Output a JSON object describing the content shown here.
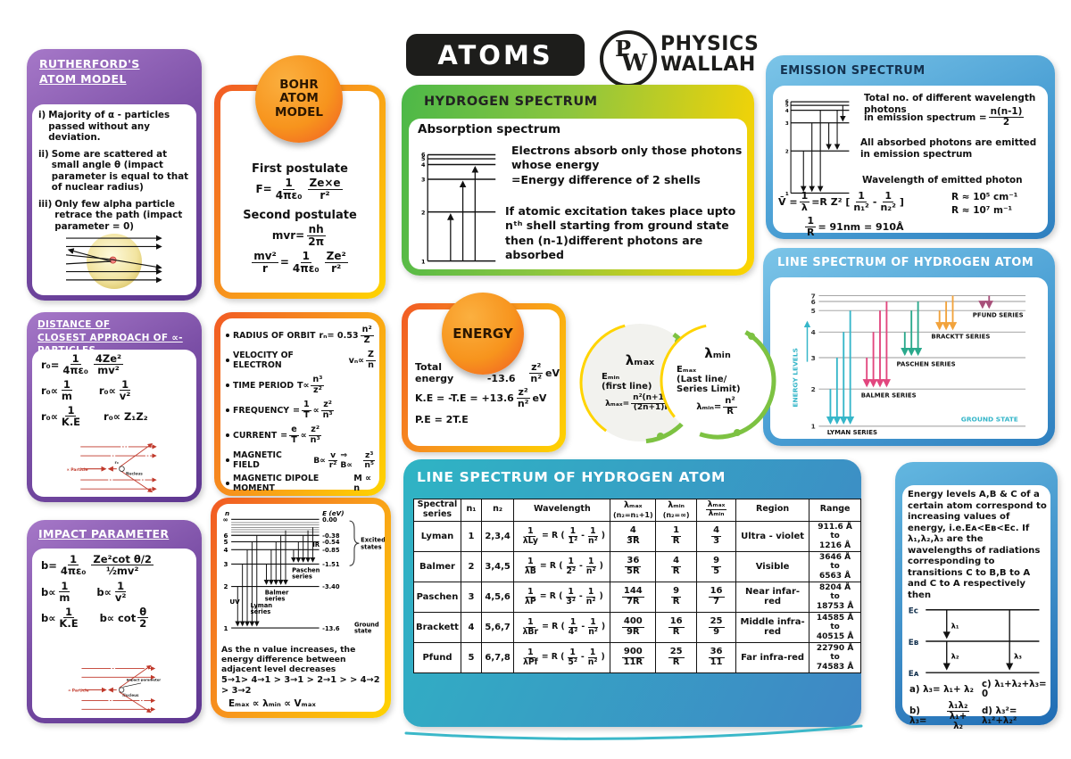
{
  "header": {
    "title": "ATOMS",
    "logo_p": "P",
    "logo_w": "W",
    "brand1": "PHYSICS",
    "brand2": "WALLAH"
  },
  "colors": {
    "purple": "#5d3690",
    "orange": "#f15a24",
    "yellow": "#ffd400",
    "green": "#4cb848",
    "blue": "#2e7fbf",
    "teal": "#2fb4c4",
    "lyman": "#35b6c9",
    "balmer": "#e2467e",
    "paschen": "#2aa98c",
    "brackett": "#f2a33c",
    "pfund": "#a8507a",
    "diagram_red": "#c0392b"
  },
  "rutherford": {
    "title1": "RUTHERFORD'S",
    "title2": "ATOM MODEL",
    "items": [
      {
        "num": "i)",
        "text": "Majority of α - particles passed without any deviation."
      },
      {
        "num": "ii)",
        "text": "Some are scattered at small angle θ (impact parameter is equal to that of nuclear radius)"
      },
      {
        "num": "iii)",
        "text": "Only few alpha particle retrace the path (impact parameter = 0)"
      }
    ]
  },
  "distance": {
    "title1": "DISTANCE OF",
    "title2": "CLOSEST APPROACH OF ∝-PARTICLES",
    "f1": "r₀= {1|4πε₀} {4Ze²|mv²}",
    "f2": "r₀∝ {1|m}",
    "f3": "r₀∝ {1|v²}",
    "f4": "r₀∝ {1|K.E}",
    "f5": "r₀∝ Z₁Z₂",
    "lbl_particle": "∝ Particle",
    "lbl_nucleus": "Nucleus",
    "lbl_r0": "r₀"
  },
  "impact": {
    "title": "IMPACT PARAMETER",
    "f1": "b= {1|4πε₀} {Ze²cot θ/2|½mv²}",
    "f2": "b∝ {1|m}",
    "f3": "b∝ {1|v²}",
    "f4": "b∝ {1|K.E}",
    "f5": "b∝ cot {θ|2}",
    "lbl_particle": "∝ Particle",
    "lbl_nucleus": "Nucleus",
    "lbl_impact": "Impact parameter"
  },
  "bohr": {
    "badge1": "BOHR",
    "badge2": "ATOM",
    "badge3": "MODEL",
    "h1": "First postulate",
    "f1": "F= {1|4πε₀} {Ze×e|r²}",
    "h2": "Second postulate",
    "f2": "mvr= {nh|2π}",
    "f3": "{mv²|r} = {1|4πε₀} {Ze²|r²}"
  },
  "orbit": {
    "items": [
      {
        "label": "RADIUS OF ORBIT",
        "formula": "rₙ= 0.53 {n²|Z}"
      },
      {
        "label": "VELOCITY OF ELECTRON",
        "formula": "vₙ∝ {Z|n}"
      },
      {
        "label": "TIME PERIOD",
        "formula": "T∝ {n³|z²}"
      },
      {
        "label": "FREQUENCY",
        "formula": "= {1|T} ∝ {z²|n³}"
      },
      {
        "label": "CURRENT",
        "formula": "= {e|T} ∝ {z²|n³}"
      },
      {
        "label": "MAGNETIC FIELD",
        "formula": "B∝ {v|r²} ⇒ B∝ {z³|n⁵}"
      },
      {
        "label": "MAGNETIC DIPOLE MOMENT",
        "formula": "M ∝ n"
      }
    ]
  },
  "ediagram": {
    "axis_n": "n",
    "axis_e": "E (eV)",
    "levels": [
      {
        "n": "∞",
        "e": "0.00"
      },
      {
        "n": "6",
        "e": "-0.38"
      },
      {
        "n": "5",
        "e": "-0.54"
      },
      {
        "n": "4",
        "e": "-0.85"
      },
      {
        "n": "3",
        "e": "-1.51"
      },
      {
        "n": "2",
        "e": "-3.40"
      },
      {
        "n": "1",
        "e": "-13.6"
      }
    ],
    "lbl_ir": "IR",
    "lbl_excited1": "Excited",
    "lbl_excited2": "states",
    "lbl_paschen1": "Paschen",
    "lbl_paschen2": "series",
    "lbl_balmer1": "Balmer",
    "lbl_balmer2": "series",
    "lbl_lyman1": "Lyman",
    "lbl_lyman2": "series",
    "lbl_uv": "UV",
    "lbl_ground1": "Ground",
    "lbl_ground2": "state",
    "note1": "As the n value increases, the energy difference between adjacent level decreases",
    "note2": "5→1> 4→1 > 3→1 > 2→1 > > 4→2 > 3→2",
    "note3": "Eₘₐₓ ∝ λₘᵢₙ ∝ Vₘₐₓ"
  },
  "hydrogen": {
    "heading": "HYDROGEN SPECTRUM",
    "sub": "Absorption spectrum",
    "levels": [
      "6",
      "5",
      "4",
      "3",
      "2",
      "1"
    ],
    "text1a": "Electrons absorb only those photons whose energy",
    "text1b": "=Energy difference of 2 shells",
    "text2": "If atomic excitation takes place upto nᵗʰ shell starting from ground state then (n-1)different photons are absorbed"
  },
  "energy": {
    "badge": "ENERGY",
    "l1": "Total energy",
    "f1": "= -13.6 {z²|n²} eV",
    "f2": "K.E = -T.E = +13.6 {z²|n²} eV",
    "f3": "P.E = 2T.E"
  },
  "lambda": {
    "left": {
      "title": "λₘₐₓ",
      "sub1": "Eₘᵢₙ",
      "sub2": "(first line)",
      "formula": "λₘₐₓ= {n²(n+1)²|(2n+1)R}"
    },
    "right": {
      "title": "λₘᵢₙ",
      "sub1": "Eₘₐₓ",
      "sub2": "(Last line/",
      "sub3": "Series Limit)",
      "formula": "λₘᵢₙ= {n²|R}"
    }
  },
  "emission": {
    "heading": "EMISSION SPECTRUM",
    "levels": [
      "6",
      "5",
      "4",
      "3",
      "2",
      "1"
    ],
    "t1a": "Total no. of different wavelength photons",
    "t1b": "in emission spectrum = {n(n-1)|2}",
    "t2": "All absorbed photons are emitted in emission spectrum",
    "t3": "Wavelength of emitted photon",
    "f1": "V̄ = {1|λ} =R Z² [ {1|n₁²} - {1|n₂²} ]",
    "r1": "R ≈ 10⁵ cm⁻¹",
    "r2": "R ≈ 10⁷  m⁻¹",
    "f2": "{1|R} = 91nm = 910Å"
  },
  "linespec": {
    "heading": "LINE SPECTRUM OF HYDROGEN ATOM",
    "ylabel": "ENERGY LEVELS",
    "levels": [
      "7",
      "6",
      "5",
      "4",
      "3",
      "2",
      "1"
    ],
    "lbl_lyman": "LYMAN SERIES",
    "lbl_balmer": "BALMER SERIES",
    "lbl_paschen": "PASCHEN SERIES",
    "lbl_brackett": "BRACKTT SERIES",
    "lbl_pfund": "PFUND SERIES",
    "lbl_ground": "GROUND STATE"
  },
  "table": {
    "heading": "LINE SPECTRUM OF HYDROGEN ATOM",
    "h1": "Spectral series",
    "h2": "n₁",
    "h3": "n₂",
    "h4": "Wavelength",
    "h5a": "λₘₐₓ",
    "h5b": "(n₂=n₁+1)",
    "h6a": "λₘᵢₙ",
    "h6b": "(n₂=∞)",
    "h7": "{λₘₐₓ|λₘᵢₙ}",
    "h8": "Region",
    "h9": "Range",
    "rows": [
      {
        "series": "Lyman",
        "n1": "1",
        "n2": "2,3,4",
        "wavelength": "{1|λLy} = R ({1|1²} - {1|n²})",
        "lmax": "{4|3R}",
        "lmin": "{1|R}",
        "ratio": "{4|3}",
        "region": "Ultra - violet",
        "range": "911.6 Å\nto\n1216 Å"
      },
      {
        "series": "Balmer",
        "n1": "2",
        "n2": "3,4,5",
        "wavelength": "{1|λB} = R ({1|2²} - {1|n²})",
        "lmax": "{36|5R}",
        "lmin": "{4|R}",
        "ratio": "{9|5}",
        "region": "Visible",
        "range": "3646 Å\nto\n6563 Å"
      },
      {
        "series": "Paschen",
        "n1": "3",
        "n2": "4,5,6",
        "wavelength": "{1|λP} = R ({1|3²} - {1|n²})",
        "lmax": "{144|7R}",
        "lmin": "{9|R}",
        "ratio": "{16|7}",
        "region": "Near infar-red",
        "range": "8204 Å\nto\n18753 Å"
      },
      {
        "series": "Brackett",
        "n1": "4",
        "n2": "5,6,7",
        "wavelength": "{1|λBr} = R ({1|4²} - {1|n²})",
        "lmax": "{400|9R}",
        "lmin": "{16|R}",
        "ratio": "{25|9}",
        "region": "Middle infra-red",
        "range": "14585 Å\nto\n40515 Å"
      },
      {
        "series": "Pfund",
        "n1": "5",
        "n2": "6,7,8",
        "wavelength": "{1|λPf} = R ({1|5²} - {1|n²})",
        "lmax": "{900|11R}",
        "lmin": "{25|R}",
        "ratio": "{36|11}",
        "region": "Far infra-red",
        "range": "22790 Å\nto\n74583 Å"
      }
    ]
  },
  "abc": {
    "text": "Energy levels A,B & C of a certain atom correspond to increasing values of energy, i.e.Eᴀ<Eʙ<Eᴄ. If λ₁,λ₂,λ₃ are the wavelengths of radiations corresponding to transitions C to B,B to A and C to A respectively then",
    "lbl_ec": "Eᴄ",
    "lbl_eb": "Eʙ",
    "lbl_ea": "Eᴀ",
    "lbl_l1": "λ₁",
    "lbl_l2": "λ₂",
    "lbl_l3": "λ₃",
    "opt_a": "a) λ₃= λ₁+ λ₂",
    "opt_b": "b) λ₃= {λ₁λ₂|λ₁+ λ₂}",
    "opt_c": "c) λ₁+λ₂+λ₃= 0",
    "opt_d": "d) λ₃²= λ₁²+λ₂²"
  }
}
